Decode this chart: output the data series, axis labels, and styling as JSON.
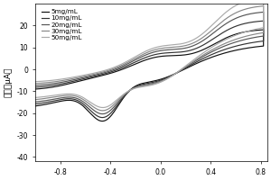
{
  "ylabel": "电流（μA）",
  "xlim": [
    -1.0,
    0.85
  ],
  "ylim": [
    -42,
    30
  ],
  "xticks": [
    -0.8,
    -0.4,
    0.0,
    0.4,
    0.8
  ],
  "yticks": [
    -40,
    -30,
    -20,
    -10,
    0,
    10,
    20
  ],
  "series": [
    {
      "label": "5mg/mL",
      "color": "#111111",
      "lw": 0.85
    },
    {
      "label": "10mg/mL",
      "color": "#333333",
      "lw": 0.85
    },
    {
      "label": "20mg/mL",
      "color": "#555555",
      "lw": 0.85
    },
    {
      "label": "30mg/mL",
      "color": "#888888",
      "lw": 0.85
    },
    {
      "label": "50mg/mL",
      "color": "#aaaaaa",
      "lw": 0.85
    }
  ],
  "background_color": "#ffffff",
  "legend_fontsize": 5.2,
  "axis_fontsize": 6.5,
  "tick_fontsize": 5.5,
  "curve_params": [
    {
      "anodic_peak": 14.0,
      "cathodic_peak": -30.0,
      "anodic_rise": 14.0,
      "cathodic_rise": -16.0
    },
    {
      "anodic_peak": 15.5,
      "cathodic_peak": -27.0,
      "anodic_rise": 17.0,
      "cathodic_rise": -14.5
    },
    {
      "anodic_peak": 17.0,
      "cathodic_peak": -24.0,
      "anodic_rise": 20.0,
      "cathodic_rise": -13.0
    },
    {
      "anodic_peak": 18.0,
      "cathodic_peak": -21.5,
      "anodic_rise": 22.0,
      "cathodic_rise": -11.5
    },
    {
      "anodic_peak": 19.0,
      "cathodic_peak": -19.0,
      "anodic_rise": 25.0,
      "cathodic_rise": -10.0
    }
  ]
}
